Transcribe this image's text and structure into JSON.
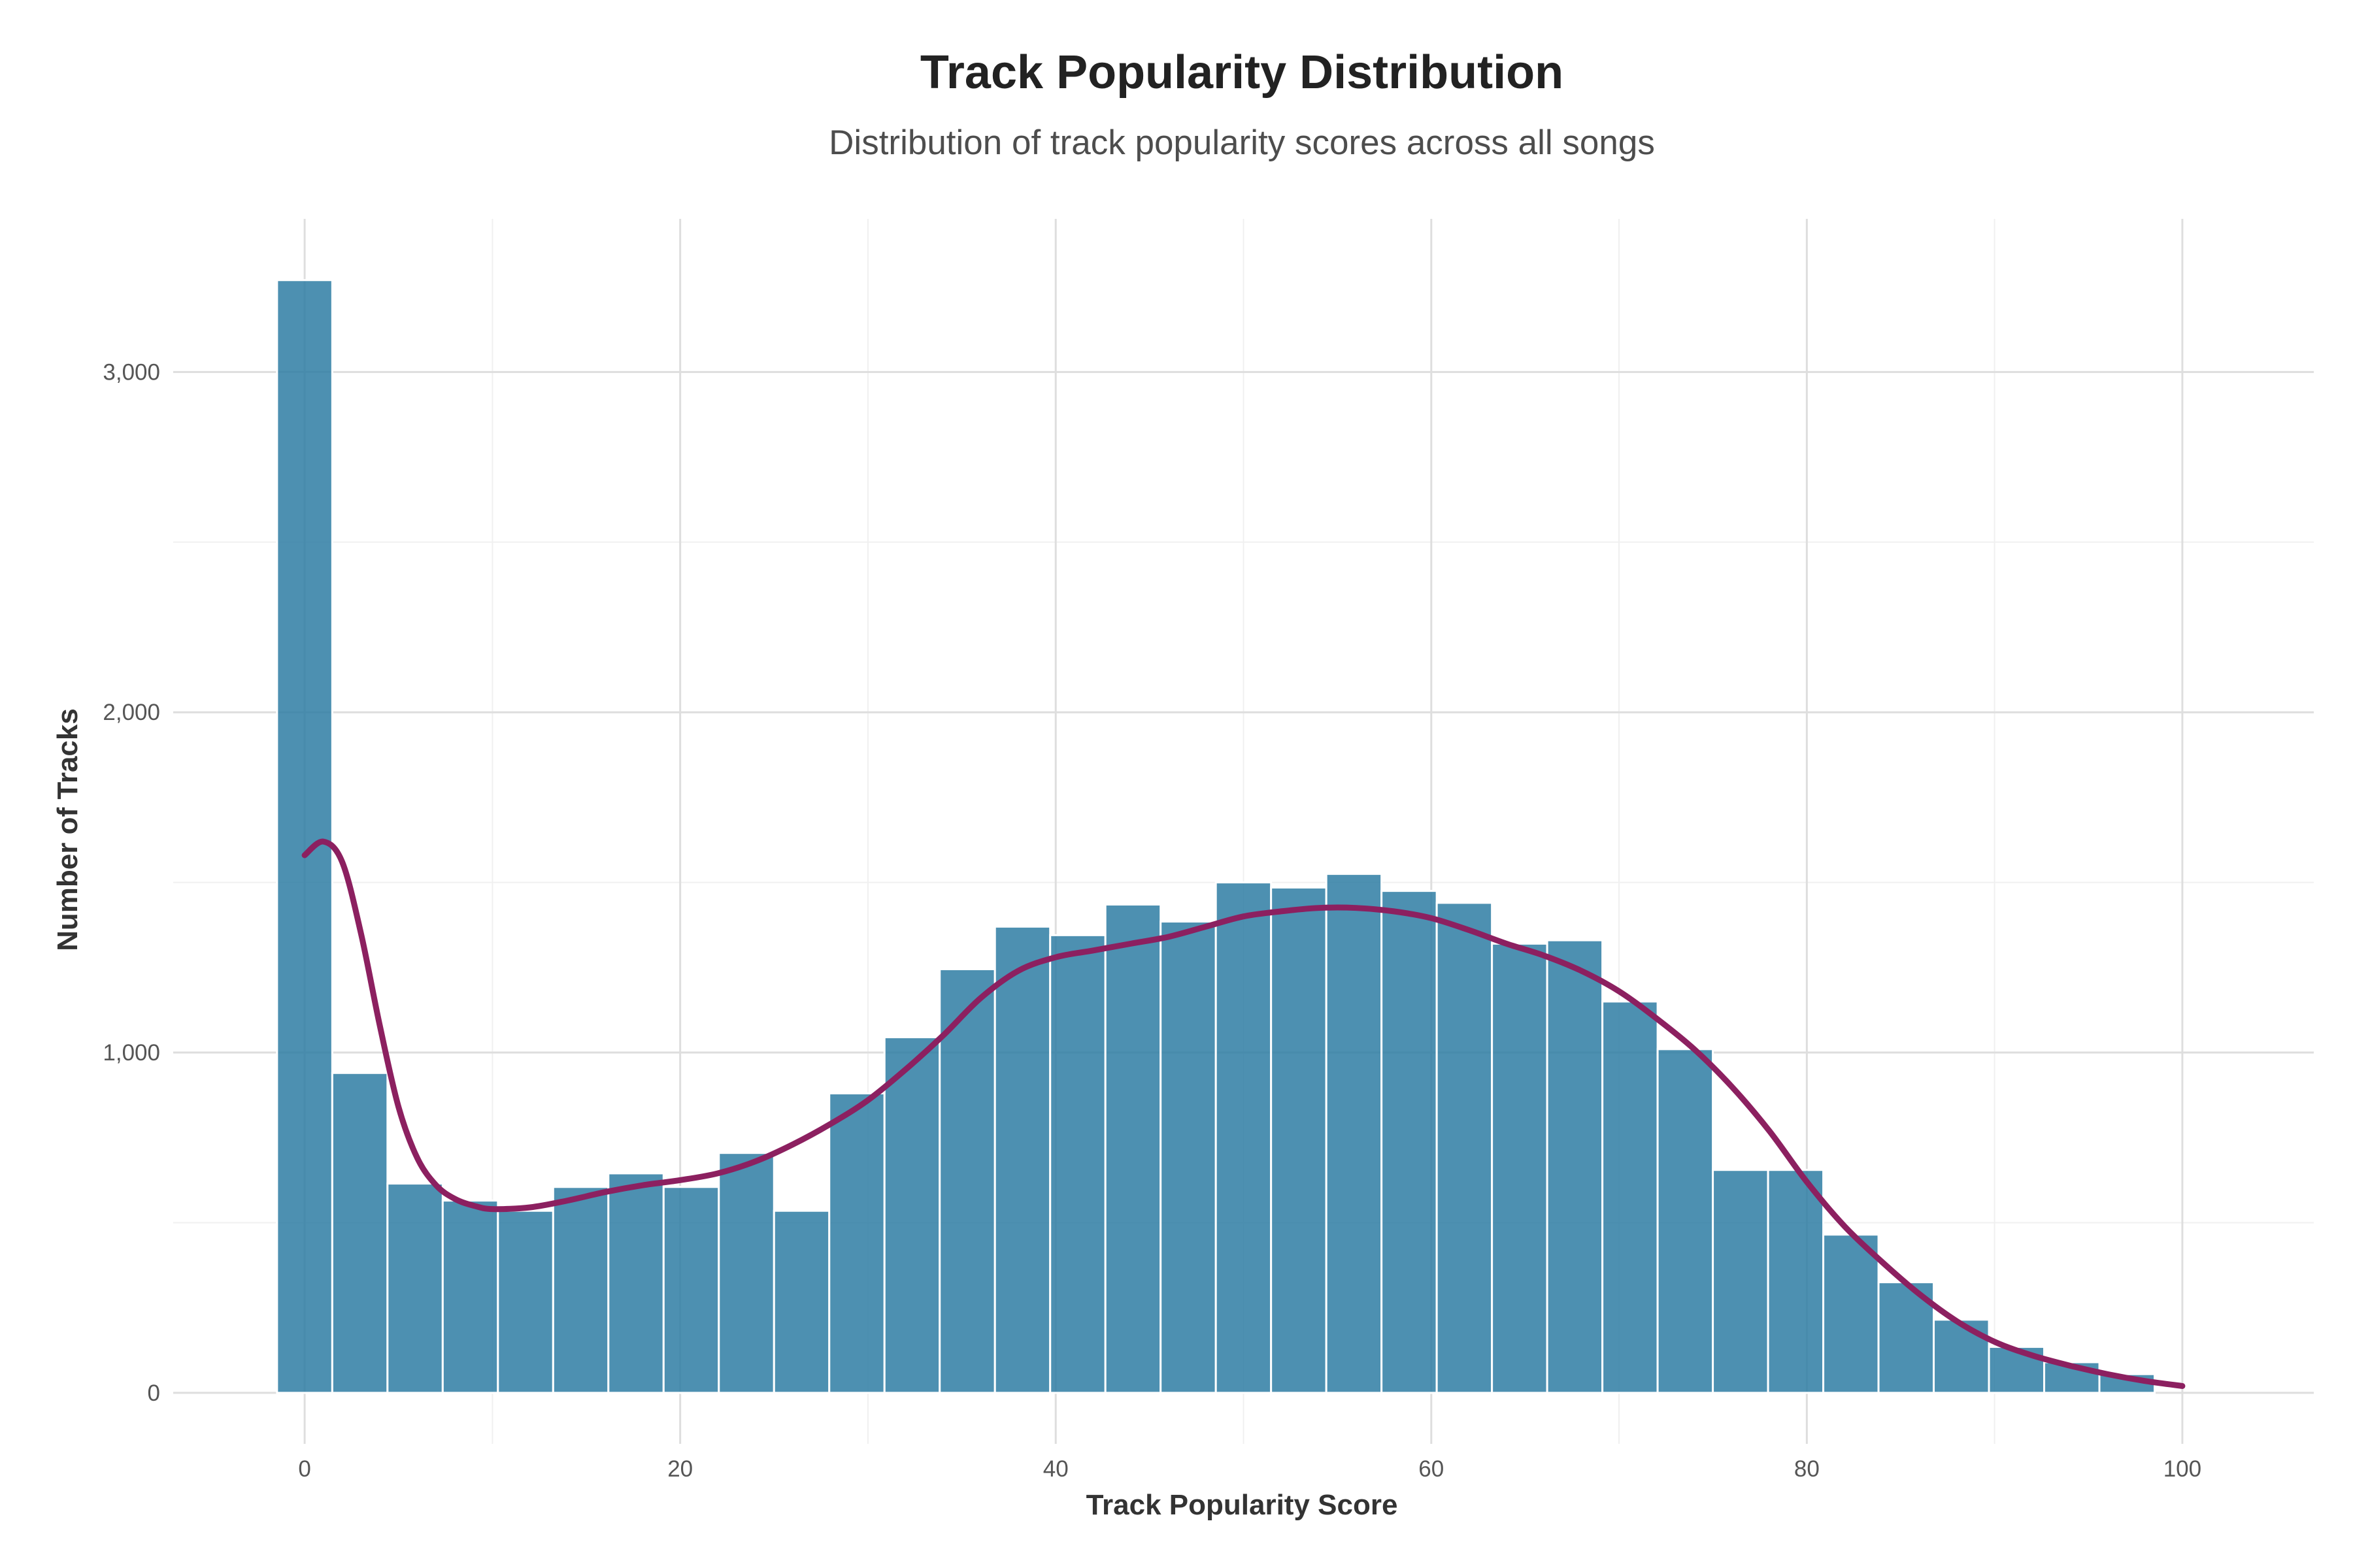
{
  "chart_data": {
    "type": "bar",
    "subtype": "histogram-with-density",
    "title": "Track Popularity Distribution",
    "subtitle": "Distribution of track popularity scores across all songs",
    "xlabel": "Track Popularity Score",
    "ylabel": "Number of Tracks",
    "xlim": [
      -7,
      107
    ],
    "ylim": [
      -150,
      3450
    ],
    "x_ticks": [
      0,
      20,
      40,
      60,
      80,
      100
    ],
    "x_tick_labels": [
      "0",
      "20",
      "40",
      "60",
      "80",
      "100"
    ],
    "y_ticks": [
      0,
      1000,
      2000,
      3000
    ],
    "y_tick_labels": [
      "0",
      "1,000",
      "2,000",
      "3,000"
    ],
    "grid": true,
    "bin_width": 2.941,
    "bin_start": -1.47,
    "series": [
      {
        "type": "histogram",
        "color": "#2e7ca3",
        "values": [
          3270,
          940,
          615,
          565,
          535,
          605,
          645,
          605,
          705,
          535,
          880,
          1045,
          1245,
          1370,
          1345,
          1435,
          1385,
          1500,
          1485,
          1525,
          1475,
          1440,
          1320,
          1330,
          1150,
          1010,
          655,
          655,
          465,
          325,
          215,
          135,
          90,
          55
        ]
      },
      {
        "type": "density-line",
        "color": "#8c2060",
        "x": [
          0,
          1,
          2,
          3,
          4,
          5,
          6,
          7,
          8,
          9,
          10,
          12,
          14,
          16,
          18,
          20,
          22,
          24,
          26,
          28,
          30,
          32,
          34,
          36,
          38,
          40,
          42,
          44,
          46,
          48,
          50,
          52,
          54,
          56,
          58,
          60,
          62,
          64,
          66,
          68,
          70,
          72,
          74,
          76,
          78,
          80,
          82,
          84,
          86,
          88,
          90,
          92,
          94,
          96,
          98,
          100
        ],
        "y": [
          1580,
          1620,
          1560,
          1350,
          1080,
          840,
          690,
          610,
          570,
          550,
          540,
          545,
          565,
          590,
          610,
          625,
          645,
          680,
          730,
          790,
          860,
          950,
          1050,
          1160,
          1240,
          1280,
          1300,
          1320,
          1340,
          1370,
          1400,
          1415,
          1425,
          1425,
          1415,
          1395,
          1360,
          1320,
          1285,
          1240,
          1180,
          1100,
          1010,
          900,
          770,
          620,
          490,
          385,
          290,
          210,
          150,
          110,
          80,
          55,
          35,
          20
        ]
      }
    ]
  }
}
